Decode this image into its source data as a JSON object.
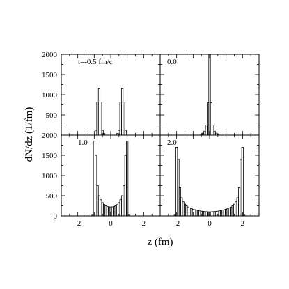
{
  "chart_data": {
    "type": "histogram-panels",
    "ylabel": "dN/dz (1/fm)",
    "xlabel": "z (fm)",
    "xlim": [
      -3,
      3
    ],
    "ylim": [
      0,
      2000
    ],
    "grid": false,
    "x_ticks": [
      -2,
      0,
      2
    ],
    "y_ticks": [
      0,
      500,
      1000,
      1500,
      2000
    ],
    "y_tick_labels_top_row": [
      "500",
      "1000",
      "1500",
      "2000",
      "2000"
    ],
    "y_tick_labels_bottom_row": [
      "0",
      "500",
      "1000",
      "1500"
    ],
    "panels": [
      {
        "label": "t=-0.5 fm/c",
        "bin_width": 0.1,
        "x": [
          -0.9,
          -0.8,
          -0.7,
          -0.6,
          -0.5,
          -0.4,
          0.4,
          0.5,
          0.6,
          0.7,
          0.8,
          0.9
        ],
        "y": [
          120,
          820,
          1150,
          820,
          120,
          40,
          40,
          120,
          820,
          1150,
          820,
          120
        ]
      },
      {
        "label": "0.0",
        "bin_width": 0.1,
        "x": [
          -0.5,
          -0.4,
          -0.3,
          -0.2,
          -0.1,
          0.0,
          0.1,
          0.2,
          0.3,
          0.4,
          0.5
        ],
        "y": [
          20,
          50,
          100,
          250,
          800,
          2000,
          800,
          250,
          100,
          50,
          20
        ]
      },
      {
        "label": "1.0",
        "bin_width": 0.1,
        "x": [
          -1.1,
          -1.0,
          -0.9,
          -0.8,
          -0.7,
          -0.6,
          -0.5,
          -0.4,
          -0.3,
          -0.2,
          -0.1,
          0.0,
          0.1,
          0.2,
          0.3,
          0.4,
          0.5,
          0.6,
          0.7,
          0.8,
          0.9,
          1.0,
          1.1
        ],
        "y": [
          20,
          1850,
          1500,
          750,
          500,
          400,
          330,
          280,
          250,
          230,
          225,
          220,
          225,
          230,
          250,
          280,
          330,
          400,
          500,
          750,
          1500,
          1850,
          20
        ]
      },
      {
        "label": "2.0",
        "bin_width": 0.1,
        "x": [
          -2.1,
          -2.0,
          -1.9,
          -1.8,
          -1.7,
          -1.6,
          -1.5,
          -1.4,
          -1.3,
          -1.2,
          -1.1,
          -1.0,
          -0.9,
          -0.8,
          -0.7,
          -0.6,
          -0.5,
          -0.4,
          -0.3,
          -0.2,
          -0.1,
          0.0,
          0.1,
          0.2,
          0.3,
          0.4,
          0.5,
          0.6,
          0.7,
          0.8,
          0.9,
          1.0,
          1.1,
          1.2,
          1.3,
          1.4,
          1.5,
          1.6,
          1.7,
          1.8,
          1.9,
          2.0,
          2.1
        ],
        "y": [
          20,
          1700,
          1400,
          700,
          450,
          350,
          290,
          250,
          220,
          200,
          180,
          165,
          155,
          145,
          135,
          125,
          118,
          112,
          108,
          105,
          102,
          100,
          102,
          105,
          108,
          112,
          118,
          125,
          135,
          145,
          155,
          165,
          180,
          200,
          220,
          250,
          290,
          350,
          450,
          700,
          1400,
          1700,
          20
        ]
      }
    ]
  }
}
